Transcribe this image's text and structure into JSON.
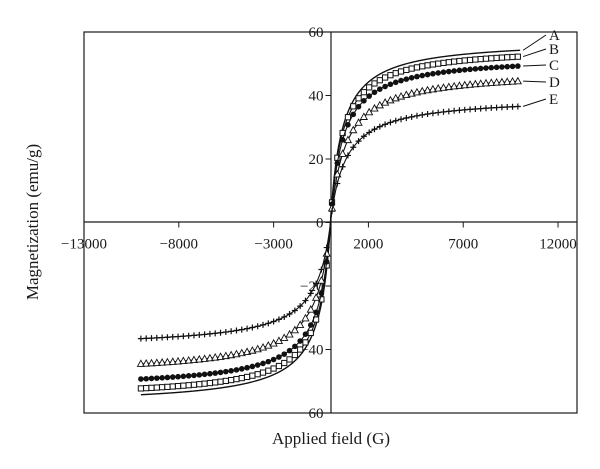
{
  "chart_data": {
    "type": "line",
    "title": "",
    "xlabel": "Applied field (G)",
    "ylabel": "Magnetization (emu/g)",
    "xlim": [
      -13000,
      13000
    ],
    "ylim": [
      -60,
      60
    ],
    "x_ticks": [
      -13000,
      -8000,
      -3000,
      2000,
      7000,
      12000
    ],
    "x_tick_labels": [
      "−13000",
      "−8000",
      "−3000",
      "2000",
      "7000",
      "12000"
    ],
    "y_ticks": [
      -60,
      -40,
      -20,
      0,
      20,
      40,
      60
    ],
    "y_tick_labels": [
      "−60",
      "−40",
      "−20",
      "0",
      "20",
      "40",
      "60"
    ],
    "grid": false,
    "legend_position": "right, labels at curve ends",
    "x_range_data": [
      -10000,
      10000
    ],
    "series": [
      {
        "name": "A",
        "marker": "none",
        "saturation": 57.5,
        "half_field": 600,
        "value_at_10000": 56.5,
        "value_at_minus_10000": -56.5
      },
      {
        "name": "B",
        "marker": "square",
        "saturation": 55.5,
        "half_field": 620,
        "value_at_10000": 54.2,
        "value_at_minus_10000": -54.2
      },
      {
        "name": "C",
        "marker": "circle",
        "saturation": 52.5,
        "half_field": 650,
        "value_at_10000": 51.0,
        "value_at_minus_10000": -51.0
      },
      {
        "name": "D",
        "marker": "triangle",
        "saturation": 48.0,
        "half_field": 780,
        "value_at_10000": 46.0,
        "value_at_minus_10000": -46.0
      },
      {
        "name": "E",
        "marker": "plus",
        "saturation": 39.5,
        "half_field": 800,
        "value_at_10000": 37.2,
        "value_at_minus_10000": -37.2
      }
    ]
  }
}
